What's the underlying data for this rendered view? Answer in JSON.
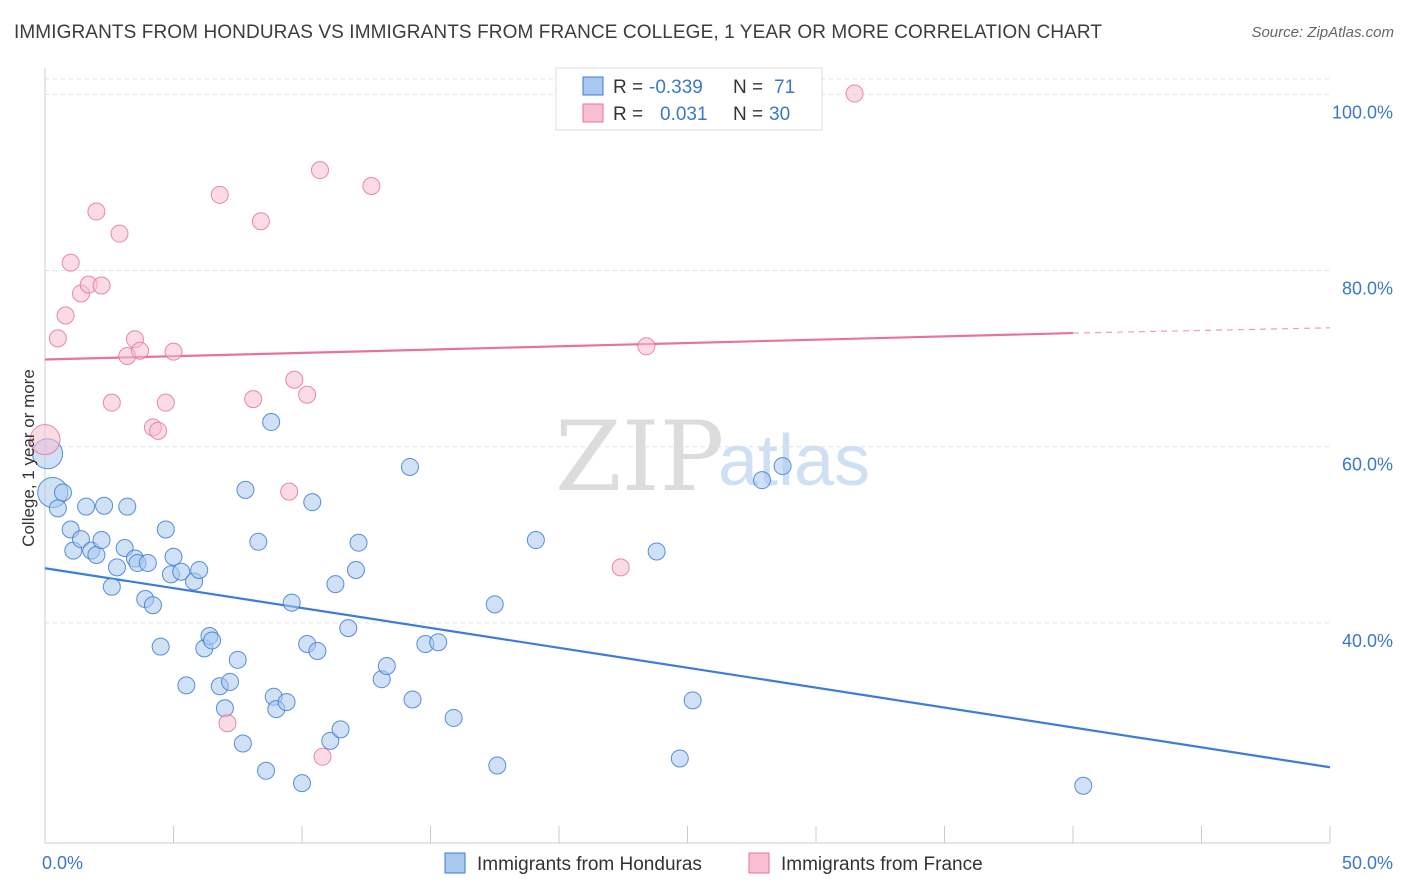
{
  "title": "IMMIGRANTS FROM HONDURAS VS IMMIGRANTS FROM FRANCE COLLEGE, 1 YEAR OR MORE CORRELATION CHART",
  "source": "Source: ZipAtlas.com",
  "watermark": {
    "zip": "ZIP",
    "atlas": "atlas"
  },
  "colors": {
    "blue": "#3b7dd8",
    "blue_fill": "#a9c8ef",
    "pink": "#e8739a",
    "pink_fill": "#f7bfd1",
    "tick": "#3a78c9",
    "grid": "#e0e0e0"
  },
  "legend": {
    "r_label": "R =",
    "n_label": "N =",
    "rows": [
      {
        "name": "Immigrants from Honduras",
        "r": "-0.339",
        "n": "71"
      },
      {
        "name": "Immigrants from France",
        "r": "0.031",
        "n": "30"
      }
    ]
  },
  "chart_data": {
    "type": "scatter",
    "title": "IMMIGRANTS FROM HONDURAS VS IMMIGRANTS FROM FRANCE COLLEGE, 1 YEAR OR MORE CORRELATION CHART",
    "xlabel": "",
    "ylabel": "College, 1 year or more",
    "xlim": [
      0,
      50
    ],
    "ylim": [
      15,
      103
    ],
    "x_tick_labels": [
      "0.0%",
      "50.0%"
    ],
    "y_ticks": [
      40,
      60,
      80,
      100
    ],
    "y_tick_labels": [
      "40.0%",
      "60.0%",
      "80.0%",
      "100.0%"
    ],
    "grid": true,
    "legend_position": "top-center",
    "series": [
      {
        "name": "Immigrants from Honduras",
        "color": "#3b7dd8",
        "trend": {
          "x": [
            0,
            50
          ],
          "y": [
            46.2,
            23.6
          ]
        },
        "points": [
          {
            "x": 0.1,
            "y": 59.2,
            "big": true
          },
          {
            "x": 0.3,
            "y": 54.8,
            "big": true
          },
          {
            "x": 0.5,
            "y": 53.0
          },
          {
            "x": 0.7,
            "y": 54.8
          },
          {
            "x": 1.0,
            "y": 50.6
          },
          {
            "x": 1.1,
            "y": 48.2
          },
          {
            "x": 1.4,
            "y": 49.5
          },
          {
            "x": 1.6,
            "y": 53.2
          },
          {
            "x": 1.8,
            "y": 48.2
          },
          {
            "x": 2.0,
            "y": 47.7
          },
          {
            "x": 2.2,
            "y": 49.4
          },
          {
            "x": 2.3,
            "y": 53.3
          },
          {
            "x": 2.6,
            "y": 44.1
          },
          {
            "x": 2.8,
            "y": 46.3
          },
          {
            "x": 3.1,
            "y": 48.5
          },
          {
            "x": 3.2,
            "y": 53.2
          },
          {
            "x": 3.5,
            "y": 47.3
          },
          {
            "x": 3.6,
            "y": 46.8
          },
          {
            "x": 3.9,
            "y": 42.7
          },
          {
            "x": 4.0,
            "y": 46.8
          },
          {
            "x": 4.2,
            "y": 42.0
          },
          {
            "x": 4.5,
            "y": 37.3
          },
          {
            "x": 4.7,
            "y": 50.6
          },
          {
            "x": 4.9,
            "y": 45.5
          },
          {
            "x": 5.0,
            "y": 47.5
          },
          {
            "x": 5.3,
            "y": 45.8
          },
          {
            "x": 5.5,
            "y": 32.9
          },
          {
            "x": 5.8,
            "y": 44.7
          },
          {
            "x": 6.0,
            "y": 46.0
          },
          {
            "x": 6.2,
            "y": 37.1
          },
          {
            "x": 6.4,
            "y": 38.5
          },
          {
            "x": 6.5,
            "y": 38.0
          },
          {
            "x": 6.8,
            "y": 32.8
          },
          {
            "x": 7.0,
            "y": 30.3
          },
          {
            "x": 7.2,
            "y": 33.3
          },
          {
            "x": 7.5,
            "y": 35.8
          },
          {
            "x": 7.7,
            "y": 26.3
          },
          {
            "x": 7.8,
            "y": 55.1
          },
          {
            "x": 8.3,
            "y": 49.2
          },
          {
            "x": 8.6,
            "y": 23.2
          },
          {
            "x": 8.8,
            "y": 62.8
          },
          {
            "x": 8.9,
            "y": 31.6
          },
          {
            "x": 9.0,
            "y": 30.2
          },
          {
            "x": 9.4,
            "y": 31.0
          },
          {
            "x": 9.6,
            "y": 42.3
          },
          {
            "x": 10.0,
            "y": 21.8
          },
          {
            "x": 10.2,
            "y": 37.6
          },
          {
            "x": 10.4,
            "y": 53.7
          },
          {
            "x": 10.6,
            "y": 36.8
          },
          {
            "x": 11.1,
            "y": 26.6
          },
          {
            "x": 11.3,
            "y": 44.4
          },
          {
            "x": 11.5,
            "y": 27.9
          },
          {
            "x": 11.8,
            "y": 39.4
          },
          {
            "x": 12.1,
            "y": 46.0
          },
          {
            "x": 12.2,
            "y": 49.1
          },
          {
            "x": 13.1,
            "y": 33.6
          },
          {
            "x": 13.3,
            "y": 35.1
          },
          {
            "x": 14.3,
            "y": 31.3
          },
          {
            "x": 14.8,
            "y": 37.6
          },
          {
            "x": 14.2,
            "y": 57.7
          },
          {
            "x": 15.3,
            "y": 37.8
          },
          {
            "x": 15.9,
            "y": 29.2
          },
          {
            "x": 17.5,
            "y": 42.1
          },
          {
            "x": 17.6,
            "y": 23.8
          },
          {
            "x": 19.1,
            "y": 49.4
          },
          {
            "x": 23.8,
            "y": 48.1
          },
          {
            "x": 24.7,
            "y": 24.6
          },
          {
            "x": 25.2,
            "y": 31.2
          },
          {
            "x": 27.9,
            "y": 56.2
          },
          {
            "x": 28.7,
            "y": 57.8
          },
          {
            "x": 40.4,
            "y": 21.5
          }
        ]
      },
      {
        "name": "Immigrants from France",
        "color": "#e8739a",
        "trend": {
          "x": [
            0,
            40
          ],
          "y": [
            69.9,
            72.9
          ]
        },
        "trend_dashed": {
          "x": [
            40,
            50
          ],
          "y": [
            72.9,
            73.5
          ]
        },
        "points": [
          {
            "x": 0.0,
            "y": 60.8,
            "big": true
          },
          {
            "x": 0.5,
            "y": 72.3
          },
          {
            "x": 0.8,
            "y": 74.9
          },
          {
            "x": 1.0,
            "y": 80.9
          },
          {
            "x": 1.4,
            "y": 77.4
          },
          {
            "x": 1.7,
            "y": 78.4
          },
          {
            "x": 2.0,
            "y": 86.7
          },
          {
            "x": 2.2,
            "y": 78.3
          },
          {
            "x": 2.6,
            "y": 65.0
          },
          {
            "x": 2.9,
            "y": 84.2
          },
          {
            "x": 3.2,
            "y": 70.3
          },
          {
            "x": 3.5,
            "y": 72.2
          },
          {
            "x": 3.7,
            "y": 70.9
          },
          {
            "x": 4.2,
            "y": 62.2
          },
          {
            "x": 4.4,
            "y": 61.8
          },
          {
            "x": 4.7,
            "y": 65.0
          },
          {
            "x": 5.0,
            "y": 70.8
          },
          {
            "x": 6.8,
            "y": 88.6
          },
          {
            "x": 7.1,
            "y": 28.6
          },
          {
            "x": 8.1,
            "y": 65.4
          },
          {
            "x": 8.4,
            "y": 85.6
          },
          {
            "x": 9.5,
            "y": 54.9
          },
          {
            "x": 9.7,
            "y": 67.6
          },
          {
            "x": 10.2,
            "y": 65.9
          },
          {
            "x": 10.7,
            "y": 91.4
          },
          {
            "x": 10.8,
            "y": 24.8
          },
          {
            "x": 12.7,
            "y": 89.6
          },
          {
            "x": 22.4,
            "y": 46.3
          },
          {
            "x": 23.4,
            "y": 71.4
          },
          {
            "x": 31.5,
            "y": 100.1
          }
        ]
      }
    ]
  }
}
